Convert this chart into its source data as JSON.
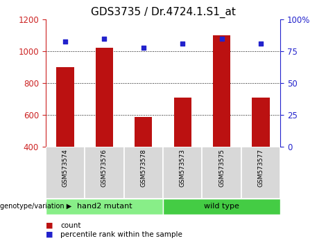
{
  "title": "GDS3735 / Dr.4724.1.S1_at",
  "samples": [
    "GSM573574",
    "GSM573576",
    "GSM573578",
    "GSM573573",
    "GSM573575",
    "GSM573577"
  ],
  "counts": [
    900,
    1025,
    590,
    710,
    1100,
    710
  ],
  "percentiles": [
    83,
    85,
    78,
    81,
    85,
    81
  ],
  "ylim_left": [
    400,
    1200
  ],
  "ylim_right": [
    0,
    100
  ],
  "yticks_left": [
    400,
    600,
    800,
    1000,
    1200
  ],
  "yticks_right": [
    0,
    25,
    50,
    75,
    100
  ],
  "bar_color": "#bb1111",
  "dot_color": "#2222cc",
  "groups": [
    {
      "label": "hand2 mutant",
      "indices": [
        0,
        1,
        2
      ],
      "color": "#88ee88"
    },
    {
      "label": "wild type",
      "indices": [
        3,
        4,
        5
      ],
      "color": "#44cc44"
    }
  ],
  "group_label": "genotype/variation",
  "legend_count": "count",
  "legend_pct": "percentile rank within the sample",
  "title_fontsize": 11,
  "axis_color_left": "#cc2222",
  "axis_color_right": "#2222cc",
  "bg_color": "#d8d8d8"
}
